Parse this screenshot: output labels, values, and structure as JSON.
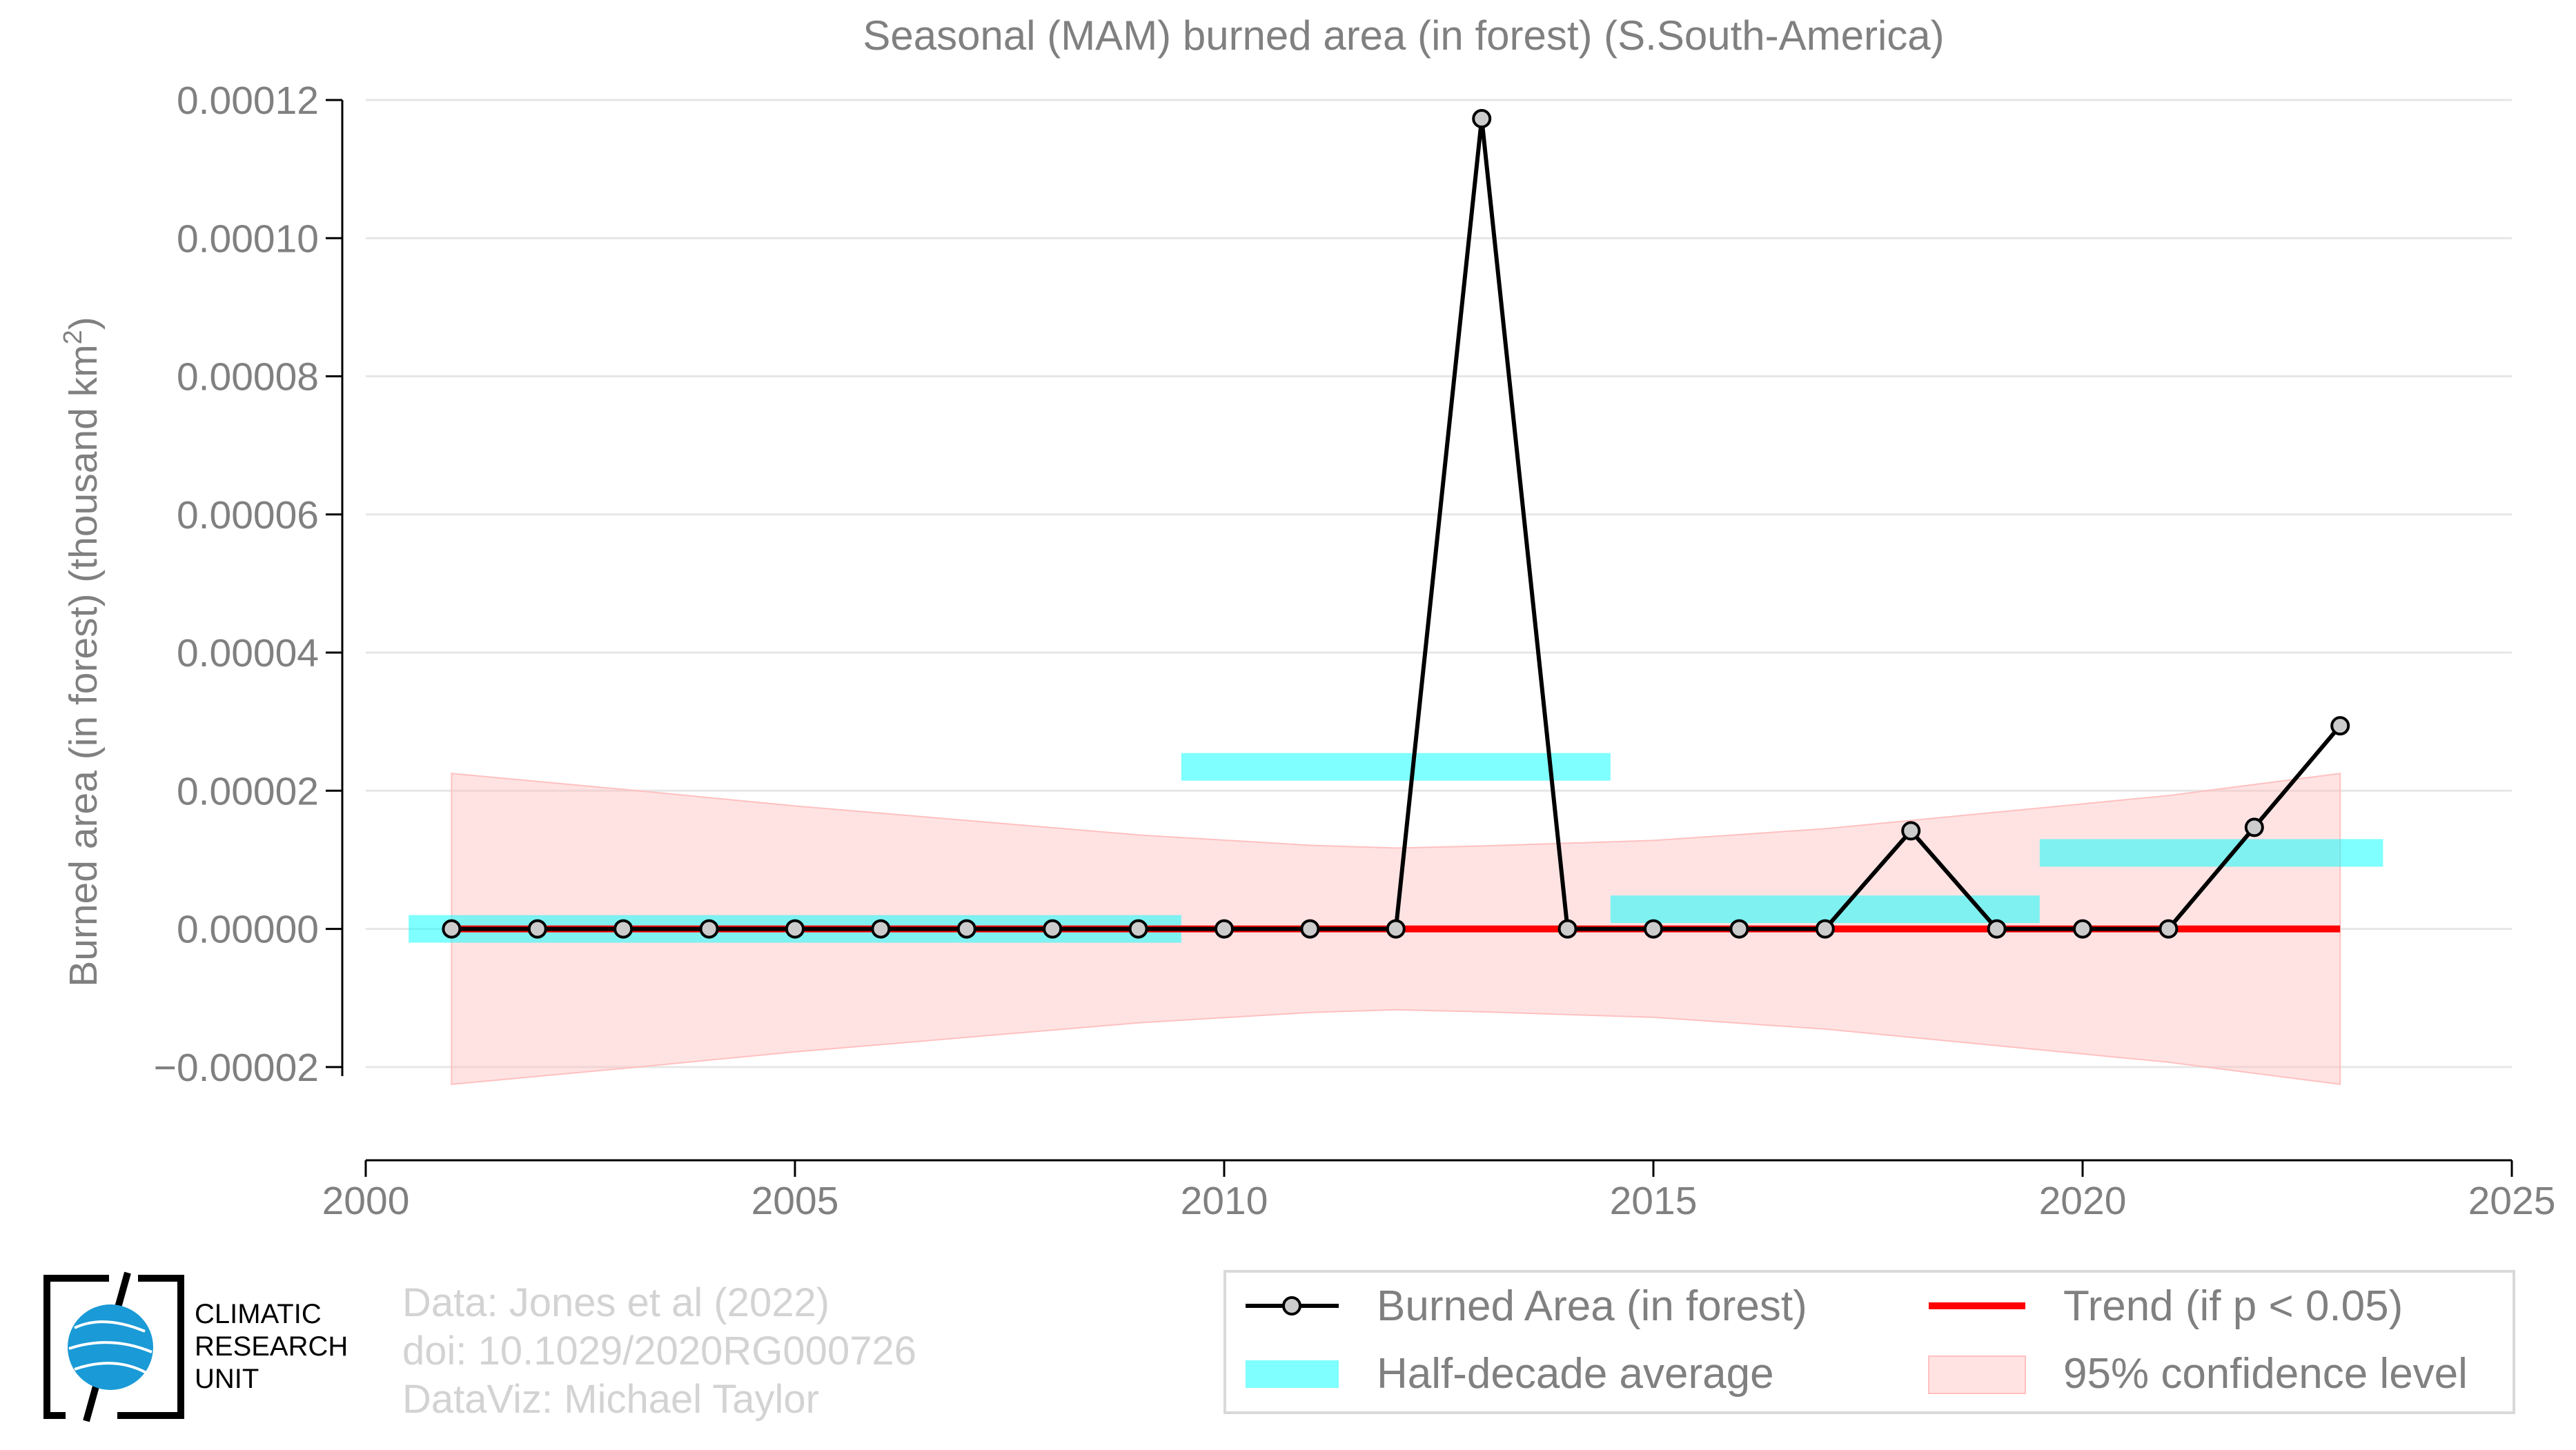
{
  "chart_data": {
    "type": "line",
    "title": "Seasonal (MAM) burned area (in forest) (S.South-America)",
    "ylabel_main": "Burned area (in forest) (thousand km",
    "ylabel_sup": "2",
    "ylabel_end": ")",
    "xlabel": "",
    "xlim": [
      2000,
      2025
    ],
    "ylim": [
      -3.35e-05,
      0.00012
    ],
    "xticks": [
      2000,
      2005,
      2010,
      2015,
      2020,
      2025
    ],
    "yticks": [
      -2e-05,
      0,
      2e-05,
      4e-05,
      6e-05,
      8e-05,
      0.0001,
      0.00012
    ],
    "ytick_labels": [
      "−0.00002",
      "0.00000",
      "0.00002",
      "0.00004",
      "0.00006",
      "0.00008",
      "0.00010",
      "0.00012"
    ],
    "xtick_labels": [
      "2000",
      "2005",
      "2010",
      "2015",
      "2020",
      "2025"
    ],
    "grid": "horizontal",
    "series": [
      {
        "name": "Burned Area (in forest)",
        "x": [
          2001,
          2002,
          2003,
          2004,
          2005,
          2006,
          2007,
          2008,
          2009,
          2010,
          2011,
          2012,
          2013,
          2014,
          2015,
          2016,
          2017,
          2018,
          2019,
          2020,
          2021,
          2022,
          2023
        ],
        "y": [
          0,
          0,
          0,
          0,
          0,
          0,
          0,
          0,
          0,
          0,
          0,
          0,
          0.0001173,
          0,
          0,
          0,
          0,
          1.42e-05,
          0,
          0,
          0,
          1.47e-05,
          2.94e-05
        ],
        "color": "#000000"
      },
      {
        "name": "Trend (if p < 0.05)",
        "x": [
          2001,
          2023
        ],
        "y": [
          0,
          0
        ],
        "color": "#ff0000"
      }
    ],
    "half_decade_average": {
      "name": "Half-decade average",
      "color": "#00ffff",
      "segments": [
        {
          "x0": 2000.5,
          "x1": 2009.5,
          "y": 0
        },
        {
          "x0": 2009.5,
          "x1": 2014.5,
          "y": 2.346e-05
        },
        {
          "x0": 2014.5,
          "x1": 2019.5,
          "y": 2.84e-06
        },
        {
          "x0": 2019.5,
          "x1": 2023.5,
          "y": 1.1e-05
        }
      ]
    },
    "confidence_band": {
      "name": "95% confidence level",
      "color": "#ffc0c0",
      "x": [
        2001,
        2003,
        2005,
        2007,
        2009,
        2011,
        2012,
        2013,
        2015,
        2017,
        2019,
        2021,
        2023
      ],
      "upper": [
        2.25e-05,
        2.02e-05,
        1.78e-05,
        1.57e-05,
        1.36e-05,
        1.21e-05,
        1.17e-05,
        1.2e-05,
        1.28e-05,
        1.45e-05,
        1.69e-05,
        1.93e-05,
        2.25e-05
      ],
      "lower": [
        -2.25e-05,
        -2.02e-05,
        -1.78e-05,
        -1.57e-05,
        -1.36e-05,
        -1.21e-05,
        -1.17e-05,
        -1.2e-05,
        -1.28e-05,
        -1.45e-05,
        -1.69e-05,
        -1.93e-05,
        -2.25e-05
      ]
    },
    "legend": {
      "placement": "bottom-right",
      "entries": [
        "Burned Area (in forest)",
        "Trend (if p < 0.05)",
        "Half-decade average",
        "95% confidence level"
      ]
    }
  },
  "credits": {
    "line1": "Data: Jones et al (2022)",
    "line2": "doi: 10.1029/2020RG000726",
    "line3": "DataViz: Michael Taylor"
  },
  "logo": {
    "line1": "CLIMATIC",
    "line2": "RESEARCH",
    "line3": "UNIT",
    "color": "#1a9ad6"
  }
}
